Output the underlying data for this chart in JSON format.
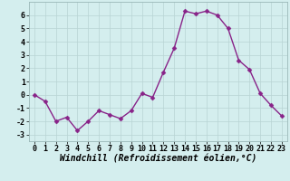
{
  "x": [
    0,
    1,
    2,
    3,
    4,
    5,
    6,
    7,
    8,
    9,
    10,
    11,
    12,
    13,
    14,
    15,
    16,
    17,
    18,
    19,
    20,
    21,
    22,
    23
  ],
  "y": [
    0,
    -0.5,
    -2,
    -1.7,
    -2.7,
    -2,
    -1.2,
    -1.5,
    -1.8,
    -1.2,
    0.1,
    -0.2,
    1.7,
    3.5,
    6.3,
    6.1,
    6.3,
    6.0,
    5.0,
    2.6,
    1.9,
    0.1,
    -0.8,
    -1.6
  ],
  "line_color": "#882288",
  "marker": "D",
  "markersize": 2.5,
  "linewidth": 1.0,
  "bg_color": "#d4eeee",
  "grid_color": "#b8d4d4",
  "xlabel": "Windchill (Refroidissement éolien,°C)",
  "xlabel_fontsize": 7,
  "tick_fontsize": 6,
  "ylim": [
    -3.5,
    7
  ],
  "xlim": [
    -0.5,
    23.5
  ],
  "yticks": [
    -3,
    -2,
    -1,
    0,
    1,
    2,
    3,
    4,
    5,
    6
  ],
  "xticks": [
    0,
    1,
    2,
    3,
    4,
    5,
    6,
    7,
    8,
    9,
    10,
    11,
    12,
    13,
    14,
    15,
    16,
    17,
    18,
    19,
    20,
    21,
    22,
    23
  ]
}
